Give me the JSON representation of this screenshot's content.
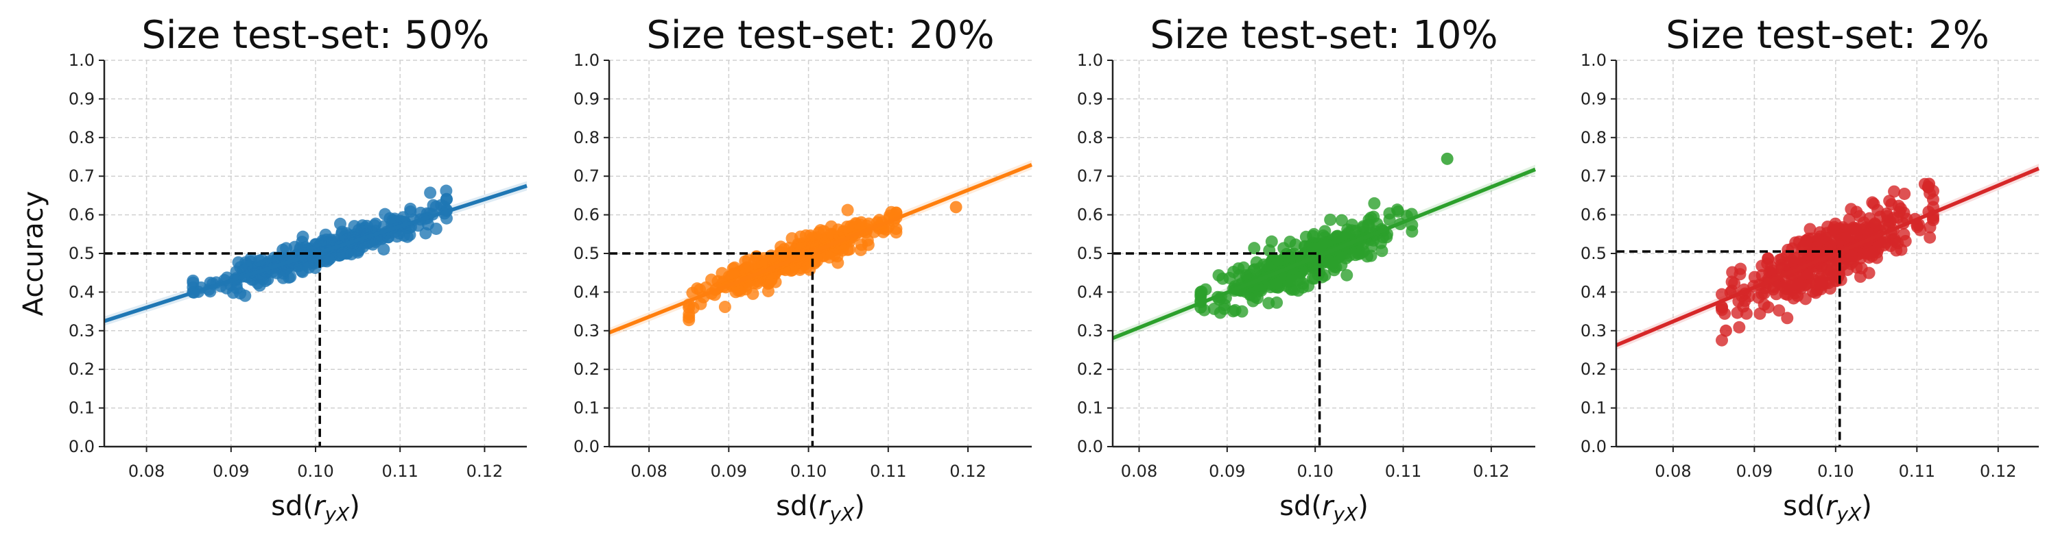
{
  "chart_data": [
    {
      "type": "scatter",
      "title": "Size test-set: 50%",
      "xlabel": "sd(r_yX)",
      "ylabel": "Accuracy",
      "xlim": [
        0.075,
        0.125
      ],
      "ylim": [
        0.0,
        1.0
      ],
      "xticks": [
        "0.08",
        "0.09",
        "0.10",
        "0.11",
        "0.12"
      ],
      "yticks": [
        "0.0",
        "0.1",
        "0.2",
        "0.3",
        "0.4",
        "0.5",
        "0.6",
        "0.7",
        "0.8",
        "0.9",
        "1.0"
      ],
      "grid": true,
      "color": "#1f77b4",
      "regression": {
        "slope": 7.0,
        "intercept": -0.2
      },
      "reference": {
        "x": 0.1005,
        "y": 0.5
      },
      "cluster": {
        "x_min": 0.0855,
        "x_max": 0.1155,
        "spread": 0.018,
        "n": 380,
        "seed": 11
      },
      "notable_points": [
        {
          "x": 0.1155,
          "y": 0.64
        },
        {
          "x": 0.0855,
          "y": 0.4
        }
      ]
    },
    {
      "type": "scatter",
      "title": "Size test-set: 20%",
      "xlabel": "sd(r_yX)",
      "ylabel": "",
      "xlim": [
        0.075,
        0.128
      ],
      "ylim": [
        0.0,
        1.0
      ],
      "xticks": [
        "0.08",
        "0.09",
        "0.10",
        "0.11",
        "0.12"
      ],
      "yticks": [
        "0.0",
        "0.1",
        "0.2",
        "0.3",
        "0.4",
        "0.5",
        "0.6",
        "0.7",
        "0.8",
        "0.9",
        "1.0"
      ],
      "grid": true,
      "color": "#ff7f0e",
      "regression": {
        "slope": 8.2,
        "intercept": -0.32
      },
      "reference": {
        "x": 0.1005,
        "y": 0.5
      },
      "cluster": {
        "x_min": 0.085,
        "x_max": 0.111,
        "spread": 0.022,
        "n": 380,
        "seed": 23
      },
      "notable_points": [
        {
          "x": 0.1185,
          "y": 0.62
        },
        {
          "x": 0.085,
          "y": 0.36
        }
      ]
    },
    {
      "type": "scatter",
      "title": "Size test-set: 10%",
      "xlabel": "sd(r_yX)",
      "ylabel": "",
      "xlim": [
        0.077,
        0.125
      ],
      "ylim": [
        0.0,
        1.0
      ],
      "xticks": [
        "0.08",
        "0.09",
        "0.10",
        "0.11",
        "0.12"
      ],
      "yticks": [
        "0.0",
        "0.1",
        "0.2",
        "0.3",
        "0.4",
        "0.5",
        "0.6",
        "0.7",
        "0.8",
        "0.9",
        "1.0"
      ],
      "grid": true,
      "color": "#2ca02c",
      "regression": {
        "slope": 9.1,
        "intercept": -0.42
      },
      "reference": {
        "x": 0.1005,
        "y": 0.5
      },
      "cluster": {
        "x_min": 0.087,
        "x_max": 0.111,
        "spread": 0.028,
        "n": 400,
        "seed": 37
      },
      "notable_points": [
        {
          "x": 0.115,
          "y": 0.745
        },
        {
          "x": 0.087,
          "y": 0.36
        }
      ]
    },
    {
      "type": "scatter",
      "title": "Size test-set: 2%",
      "xlabel": "sd(r_yX)",
      "ylabel": "",
      "xlim": [
        0.073,
        0.125
      ],
      "ylim": [
        0.0,
        1.0
      ],
      "xticks": [
        "0.08",
        "0.09",
        "0.10",
        "0.11",
        "0.12"
      ],
      "yticks": [
        "0.0",
        "0.1",
        "0.2",
        "0.3",
        "0.4",
        "0.5",
        "0.6",
        "0.7",
        "0.8",
        "0.9",
        "1.0"
      ],
      "grid": true,
      "color": "#d62728",
      "regression": {
        "slope": 8.8,
        "intercept": -0.38
      },
      "reference": {
        "x": 0.1005,
        "y": 0.505
      },
      "cluster": {
        "x_min": 0.086,
        "x_max": 0.112,
        "spread": 0.04,
        "n": 420,
        "seed": 53
      },
      "notable_points": [
        {
          "x": 0.0865,
          "y": 0.3
        },
        {
          "x": 0.1115,
          "y": 0.68
        }
      ]
    }
  ]
}
